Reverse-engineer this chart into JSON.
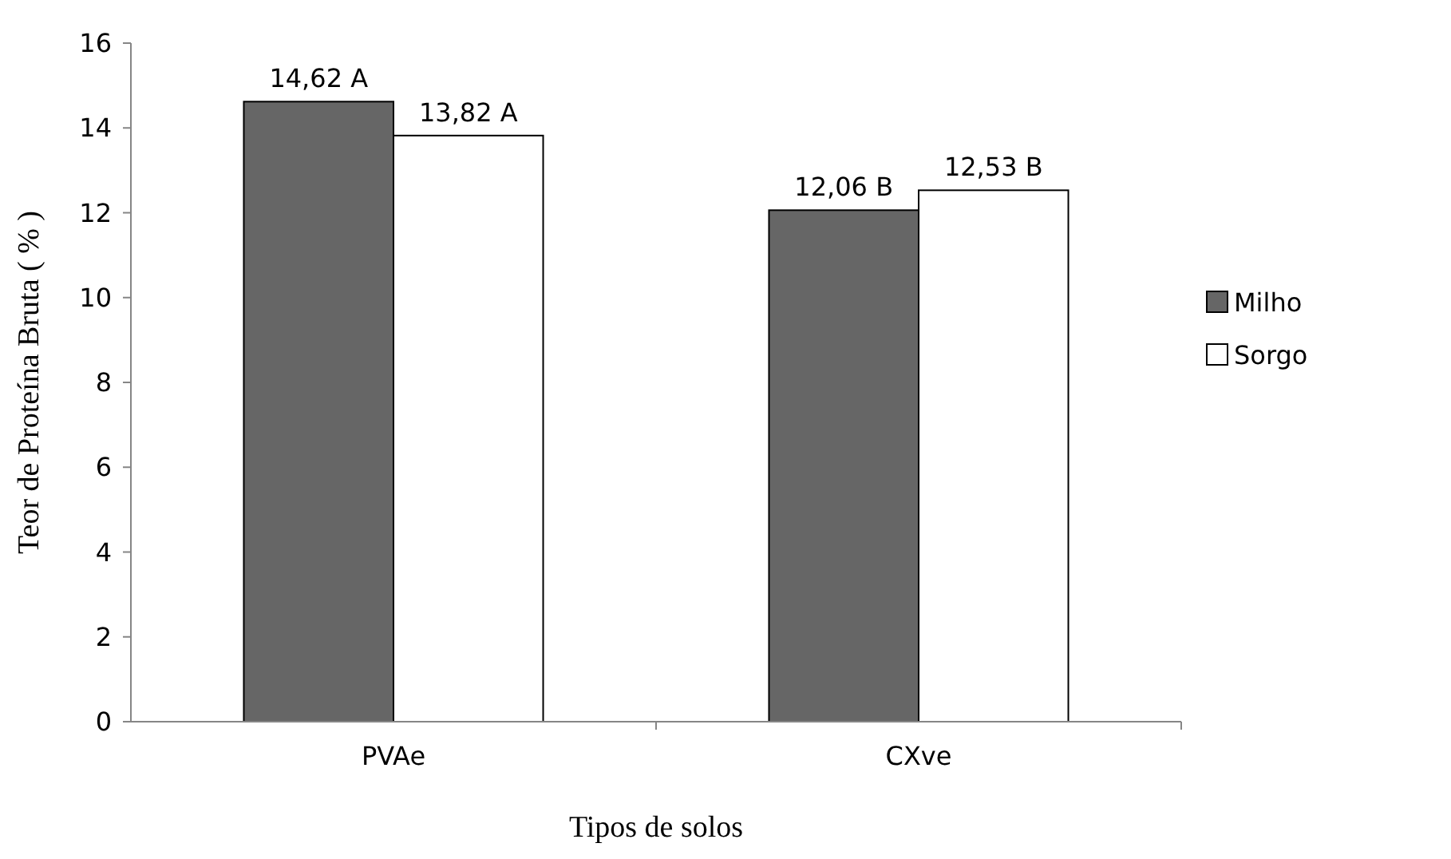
{
  "chart_data": {
    "type": "bar",
    "xlabel": "Tipos de solos",
    "ylabel": "Teor de Proteína Bruta ( % )",
    "categories": [
      "PVAe",
      "CXve"
    ],
    "series": [
      {
        "name": "Milho",
        "color": "#666666",
        "values": [
          14.62,
          12.06
        ],
        "value_labels": [
          "14,62 A",
          "12,06 B"
        ]
      },
      {
        "name": "Sorgo",
        "color": "#ffffff",
        "values": [
          13.82,
          12.53
        ],
        "value_labels": [
          "13,82 A",
          "12,53 B"
        ]
      }
    ],
    "ylim": [
      0,
      16
    ],
    "yticks": [
      0,
      2,
      4,
      6,
      8,
      10,
      12,
      14,
      16
    ],
    "grid": false,
    "legend": "right"
  }
}
